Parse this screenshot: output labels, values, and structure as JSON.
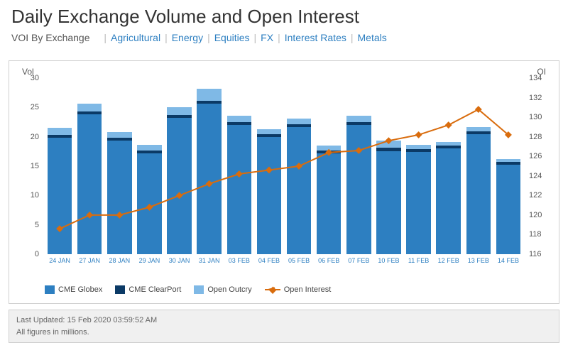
{
  "title": "Daily Exchange Volume and Open Interest",
  "nav": {
    "label": "VOI By Exchange",
    "links": [
      "Agricultural",
      "Energy",
      "Equities",
      "FX",
      "Interest Rates",
      "Metals"
    ],
    "link_color": "#2d7fc1",
    "label_color": "#555555",
    "sep_color": "#bbbbbb"
  },
  "chart": {
    "type": "stacked-bar-with-line",
    "left_axis": {
      "label": "Vol",
      "min": 0,
      "max": 30,
      "step": 5,
      "text_color": "#555555"
    },
    "right_axis": {
      "label": "OI",
      "min": 116,
      "max": 134,
      "step": 2,
      "text_color": "#555555"
    },
    "categories": [
      "24 JAN",
      "27 JAN",
      "28 JAN",
      "29 JAN",
      "30 JAN",
      "31 JAN",
      "03 FEB",
      "04 FEB",
      "05 FEB",
      "06 FEB",
      "07 FEB",
      "10 FEB",
      "11 FEB",
      "12 FEB",
      "13 FEB",
      "14 FEB"
    ],
    "series": [
      {
        "name": "CME Globex",
        "color": "#2d7fc1",
        "values": [
          19.8,
          23.8,
          19.4,
          17.2,
          23.2,
          25.6,
          22.0,
          20.0,
          21.6,
          17.2,
          22.0,
          17.6,
          17.4,
          18.0,
          20.4,
          15.2
        ]
      },
      {
        "name": "CME ClearPort",
        "color": "#0b3a66",
        "values": [
          0.5,
          0.5,
          0.5,
          0.45,
          0.5,
          0.55,
          0.5,
          0.5,
          0.5,
          0.5,
          0.5,
          0.5,
          0.5,
          0.5,
          0.5,
          0.5
        ]
      },
      {
        "name": "Open Outcry",
        "color": "#7fb9e6",
        "values": [
          1.2,
          1.3,
          0.9,
          1.0,
          1.4,
          2.0,
          1.1,
          0.8,
          1.0,
          0.8,
          1.1,
          1.2,
          0.7,
          0.6,
          0.7,
          0.5
        ]
      }
    ],
    "line": {
      "name": "Open Interest",
      "color": "#d96c0d",
      "marker": "diamond",
      "marker_size": 7,
      "line_width": 2,
      "values": [
        118.6,
        120.0,
        120.0,
        120.8,
        122.0,
        123.2,
        124.2,
        124.6,
        125.0,
        126.4,
        126.6,
        127.6,
        128.2,
        129.2,
        130.8,
        128.2
      ]
    },
    "bar_width_ratio": 0.82,
    "background": "#ffffff",
    "x_tick_color": "#2d7fc1",
    "x_tick_fontsize": 9,
    "y_tick_fontsize": 11
  },
  "footer": {
    "updated": "Last Updated: 15 Feb 2020 03:59:52 AM",
    "note": "All figures in millions.",
    "bg": "#f0f0f0",
    "border": "#d0d0d0",
    "text_color": "#666666"
  }
}
